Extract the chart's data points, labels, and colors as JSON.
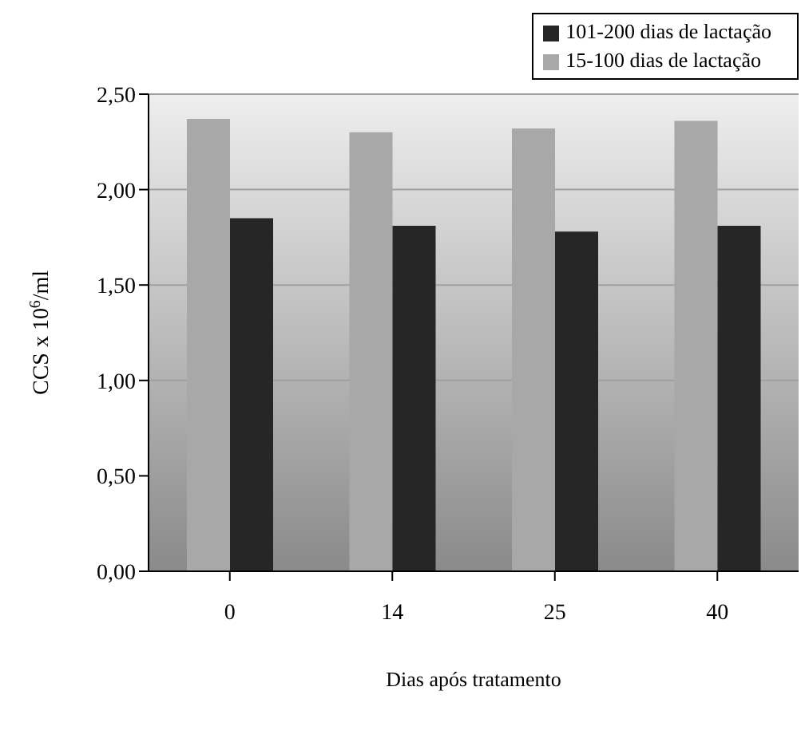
{
  "chart_data": {
    "type": "bar",
    "xlabel": "Dias após tratamento",
    "ylabel": "CCS x 10$^{6}$/ml",
    "categories": [
      "0",
      "14",
      "25",
      "40"
    ],
    "series": [
      {
        "name": "15-100 dias de lactação",
        "color": "#a8a8a8",
        "values": [
          2.37,
          2.3,
          2.32,
          2.36
        ]
      },
      {
        "name": "101-200 dias de lactação",
        "color": "#262626",
        "values": [
          1.85,
          1.81,
          1.78,
          1.81
        ]
      }
    ],
    "ylim": [
      0,
      2.5
    ],
    "yticks": [
      {
        "value": 0,
        "label": "0,00"
      },
      {
        "value": 0.5,
        "label": "0,50"
      },
      {
        "value": 1,
        "label": "1,00"
      },
      {
        "value": 1.5,
        "label": "1,50"
      },
      {
        "value": 2,
        "label": "2,00"
      },
      {
        "value": 2.5,
        "label": "2,50"
      }
    ],
    "grid": "y",
    "legend": "top right"
  }
}
